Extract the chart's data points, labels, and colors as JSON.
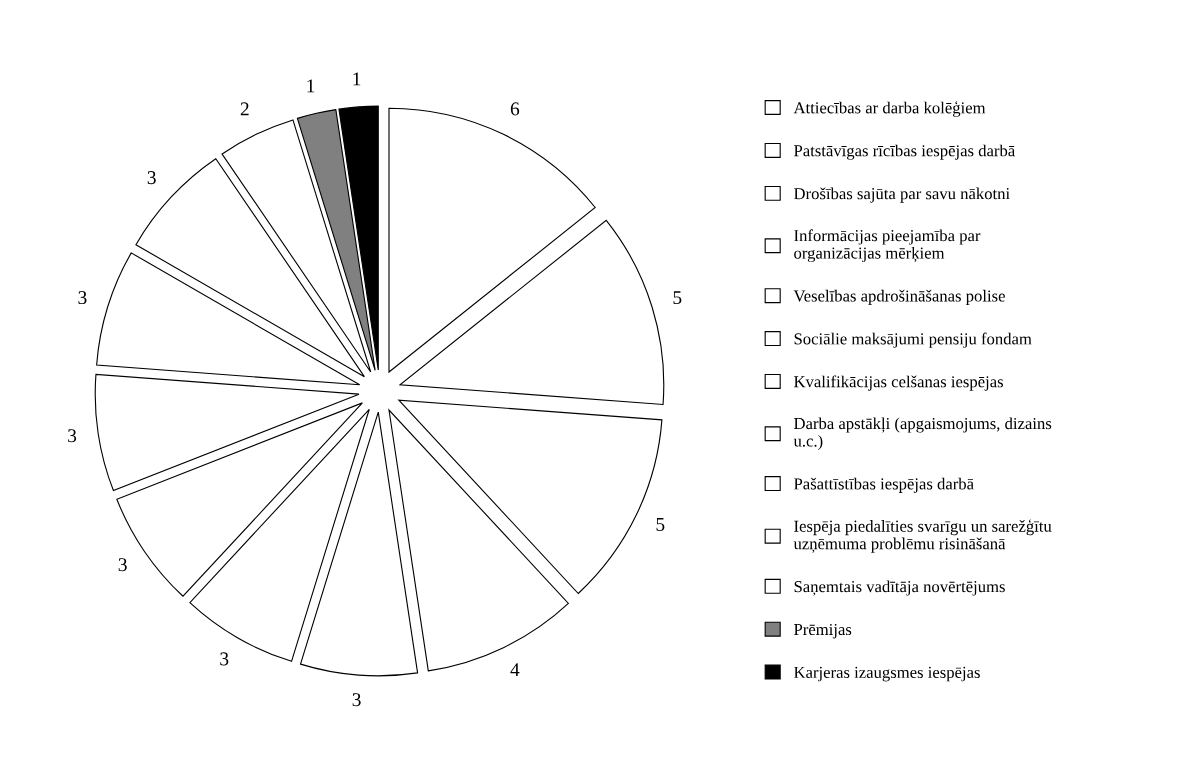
{
  "chart_data": {
    "type": "pie",
    "categories": [
      "Attiecības ar darba kolēģiem",
      "Patstāvīgas rīcības iespējas darbā",
      "Drošības sajūta par savu nākotni",
      "Informācijas pieejamība par\norganizācijas mērķiem",
      "Veselības apdrošināšanas polise",
      "Sociālie maksājumi pensiju fondam",
      "Kvalifikācijas celšanas iespējas",
      "Darba apstākļi (apgaismojums, dizains\nu.c.)",
      "Pašattīstības iespējas darbā",
      "Iespēja piedalīties svarīgu un sarežģītu\nuzņēmuma problēmu risināšanā",
      "Saņemtais vadītāja novērtējums",
      "Prēmijas",
      "Karjeras izaugsmes iespējas"
    ],
    "values": [
      6,
      5,
      5,
      4,
      3,
      3,
      3,
      3,
      3,
      3,
      2,
      1,
      1
    ],
    "colors": [
      "#ffffff",
      "#ffffff",
      "#ffffff",
      "#ffffff",
      "#ffffff",
      "#ffffff",
      "#ffffff",
      "#ffffff",
      "#ffffff",
      "#ffffff",
      "#ffffff",
      "#808080",
      "#000000"
    ],
    "data_labels": true,
    "legend": "right"
  }
}
